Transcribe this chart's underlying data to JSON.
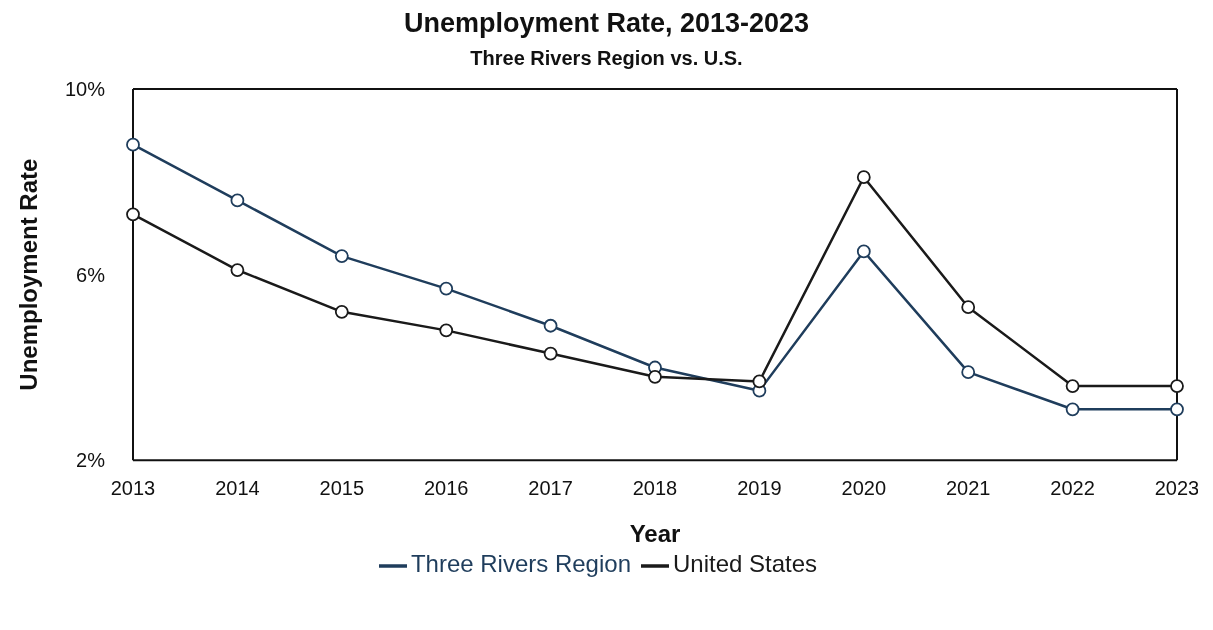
{
  "chart_data": {
    "type": "line",
    "title": "Unemployment Rate, 2013-2023",
    "subtitle": "Three Rivers Region vs. U.S.",
    "xlabel": "Year",
    "ylabel": "Unemployment Rate",
    "categories": [
      "2013",
      "2014",
      "2015",
      "2016",
      "2017",
      "2018",
      "2019",
      "2020",
      "2021",
      "2022",
      "2023"
    ],
    "series": [
      {
        "name": "Three Rivers Region",
        "color": "#1f3d5c",
        "values": [
          8.8,
          7.6,
          6.4,
          5.7,
          4.9,
          4.0,
          3.5,
          6.5,
          3.9,
          3.1,
          3.1
        ]
      },
      {
        "name": "United States",
        "color": "#1a1a1a",
        "values": [
          7.3,
          6.1,
          5.2,
          4.8,
          4.3,
          3.8,
          3.7,
          8.1,
          5.3,
          3.6,
          3.6
        ]
      }
    ],
    "ylim": [
      2,
      10
    ],
    "yticks": [
      {
        "value": 2,
        "label": "2%"
      },
      {
        "value": 6,
        "label": "6%"
      },
      {
        "value": 10,
        "label": "10%"
      }
    ],
    "grid": false,
    "legend": "bottom",
    "marker": "circle",
    "line_style": "solid"
  }
}
